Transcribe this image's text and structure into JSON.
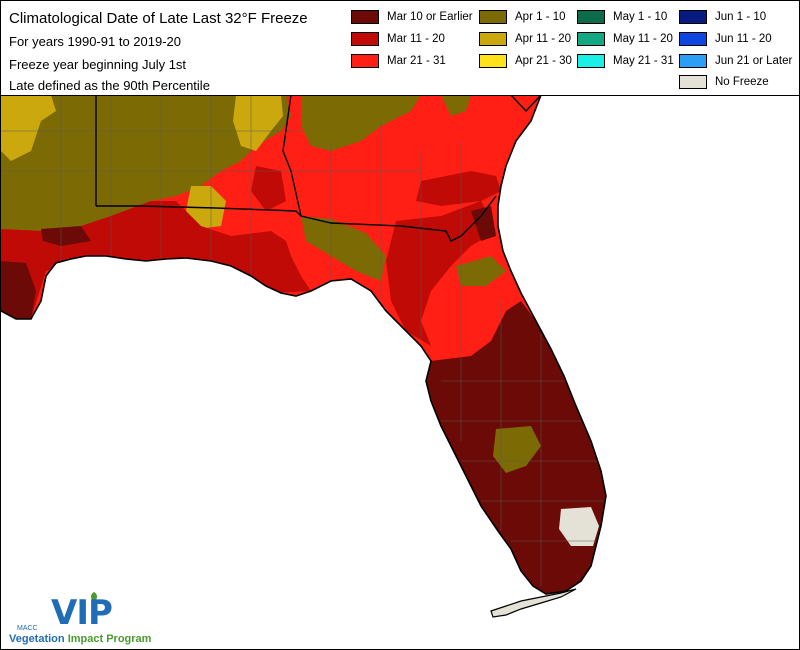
{
  "title": {
    "line1": "Climatological Date of Late Last 32°F Freeze",
    "line2": "For years 1990-91 to 2019-20",
    "line3": "Freeze year beginning July 1st",
    "line4": "Late defined as the 90th Percentile"
  },
  "legend": [
    {
      "label": "Mar 10 or Earlier",
      "color": "#6b0a06"
    },
    {
      "label": "Mar 11 - 20",
      "color": "#c00a05"
    },
    {
      "label": "Mar 21 - 31",
      "color": "#ff1f14"
    },
    {
      "label": "Apr 1 - 10",
      "color": "#7c6a05"
    },
    {
      "label": "Apr 11 - 20",
      "color": "#cba90e"
    },
    {
      "label": "Apr 21 - 30",
      "color": "#ffe219"
    },
    {
      "label": "May 1 - 10",
      "color": "#0c6b4a"
    },
    {
      "label": "May 11 - 20",
      "color": "#13a882"
    },
    {
      "label": "May 21 - 31",
      "color": "#1cf0e6"
    },
    {
      "label": "Jun 1 - 10",
      "color": "#061a82"
    },
    {
      "label": "Jun 11 - 20",
      "color": "#1046e0"
    },
    {
      "label": "Jun 21 or Later",
      "color": "#2d9ef5"
    },
    {
      "label": "No Freeze",
      "color": "#e4e1d6"
    }
  ],
  "colors": {
    "water": "#ffffff",
    "county_lines": "#5a5a5a",
    "state_lines": "#000000"
  },
  "logo": {
    "mark": "VIP",
    "org": "MACC",
    "program_word1": "Vegetation",
    "program_word2": "Impact Program"
  }
}
